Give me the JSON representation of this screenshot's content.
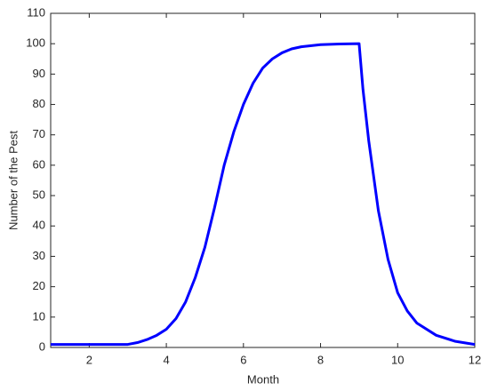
{
  "chart_data": {
    "type": "line",
    "x_label": "Month",
    "y_label": "Number of the Pest",
    "x": [
      1,
      1.5,
      2,
      2.5,
      3,
      3.25,
      3.5,
      3.75,
      4,
      4.25,
      4.5,
      4.75,
      5,
      5.25,
      5.5,
      5.75,
      6,
      6.25,
      6.5,
      6.75,
      7,
      7.25,
      7.5,
      8,
      8.5,
      9,
      9.1,
      9.25,
      9.5,
      9.75,
      10,
      10.25,
      10.5,
      11,
      11.5,
      12
    ],
    "series": [
      {
        "name": "Pest",
        "color": "#0000ff",
        "values": [
          1,
          1,
          1,
          1,
          1,
          1.6,
          2.6,
          4,
          6,
          9.5,
          15,
          23,
          33,
          46,
          60,
          71,
          80,
          87,
          92,
          95,
          97,
          98.3,
          99,
          99.7,
          99.9,
          100,
          85,
          68,
          45,
          29,
          18,
          12,
          8,
          4,
          2,
          1
        ]
      }
    ],
    "xlim": [
      1,
      12
    ],
    "xticks": [
      2,
      4,
      6,
      8,
      10,
      12
    ],
    "ylim": [
      0,
      110
    ],
    "yticks": [
      0,
      10,
      20,
      30,
      40,
      50,
      60,
      70,
      80,
      90,
      100,
      110
    ],
    "grid": false
  }
}
